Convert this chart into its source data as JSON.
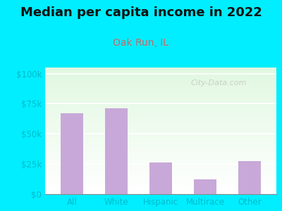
{
  "title": "Median per capita income in 2022",
  "subtitle": "Oak Run, IL",
  "categories": [
    "All",
    "White",
    "Hispanic",
    "Multirace",
    "Other"
  ],
  "values": [
    67000,
    71000,
    26000,
    12000,
    27500
  ],
  "bar_color": "#c8a8d8",
  "title_fontsize": 13,
  "subtitle_fontsize": 10,
  "subtitle_color": "#cc6666",
  "title_color": "#111111",
  "tick_label_color": "#00bbcc",
  "ytick_labels": [
    "$0",
    "$25k",
    "$50k",
    "$75k",
    "$100k"
  ],
  "ytick_values": [
    0,
    25000,
    50000,
    75000,
    100000
  ],
  "ylim": [
    0,
    105000
  ],
  "bg_outer": "#00eeff",
  "watermark": "City-Data.com",
  "watermark_color": "#aaaaaa"
}
